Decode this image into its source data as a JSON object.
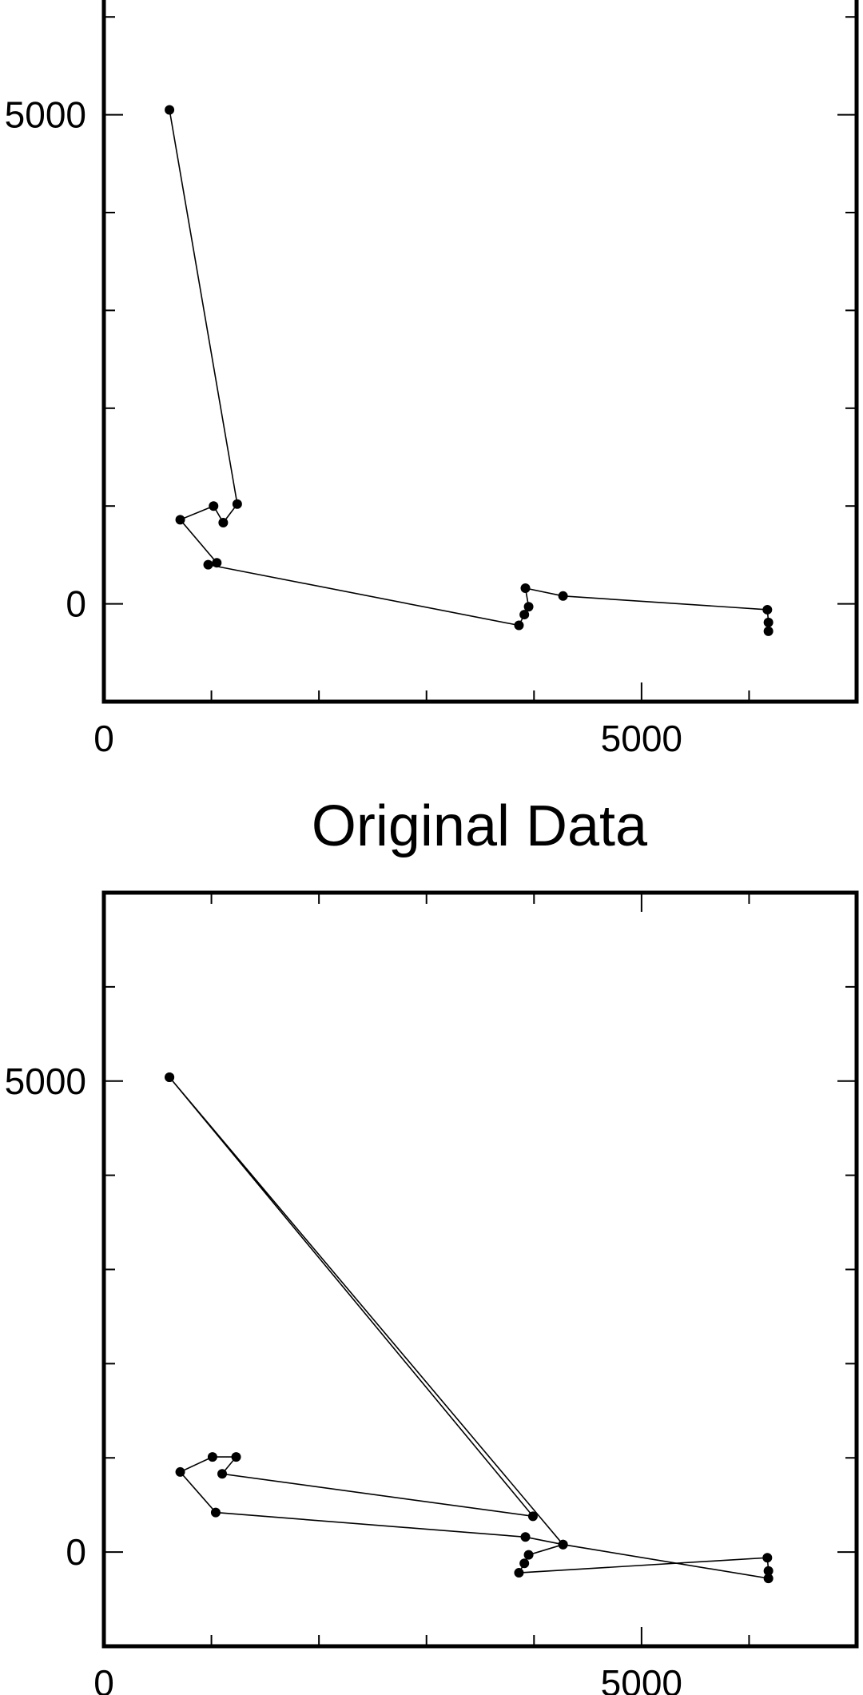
{
  "colors": {
    "background": "#ffffff",
    "axis": "#000000",
    "line": "#000000",
    "marker": "#000000"
  },
  "chart_data": [
    {
      "type": "scatter",
      "connected": true,
      "title": "",
      "xlabel": "",
      "ylabel": "",
      "xlim": [
        0,
        7000
      ],
      "ylim": [
        -1000,
        6500
      ],
      "x_ticks_major": [
        0,
        5000
      ],
      "x_tick_labels": [
        "0",
        "5000"
      ],
      "y_ticks_major": [
        0,
        5000
      ],
      "y_tick_labels": [
        "0",
        "5000"
      ],
      "x_ticks_minor_step": 1000,
      "y_ticks_minor_step": 1000,
      "grid": false,
      "series": [
        {
          "x": [
            610,
            1240,
            1110,
            1020,
            710,
            1050,
            970,
            3860,
            3910,
            3950,
            3920,
            4270,
            6170,
            6180,
            6180
          ],
          "y": [
            5050,
            1020,
            830,
            1000,
            860,
            420,
            400,
            -220,
            -110,
            -30,
            160,
            80,
            -60,
            -190,
            -280
          ]
        }
      ]
    },
    {
      "type": "scatter",
      "connected": true,
      "title": "Original Data",
      "xlabel": "",
      "ylabel": "",
      "xlim": [
        0,
        7000
      ],
      "ylim": [
        -1000,
        7000
      ],
      "x_ticks_major": [
        0,
        5000
      ],
      "x_tick_labels": [
        "0",
        "5000"
      ],
      "y_ticks_major": [
        0,
        5000
      ],
      "y_tick_labels": [
        "0",
        "5000"
      ],
      "x_ticks_minor_step": 1000,
      "y_ticks_minor_step": 1000,
      "grid": false,
      "series": [
        {
          "x": [
            610,
            3990,
            1100,
            1230,
            1010,
            710,
            1040,
            3920,
            4270,
            3950,
            3910,
            3860,
            6170,
            6180,
            6180,
            4270,
            610
          ],
          "y": [
            5040,
            380,
            830,
            1010,
            1010,
            850,
            420,
            160,
            80,
            -30,
            -120,
            -220,
            -60,
            -200,
            -280,
            80,
            5040
          ]
        }
      ]
    }
  ]
}
